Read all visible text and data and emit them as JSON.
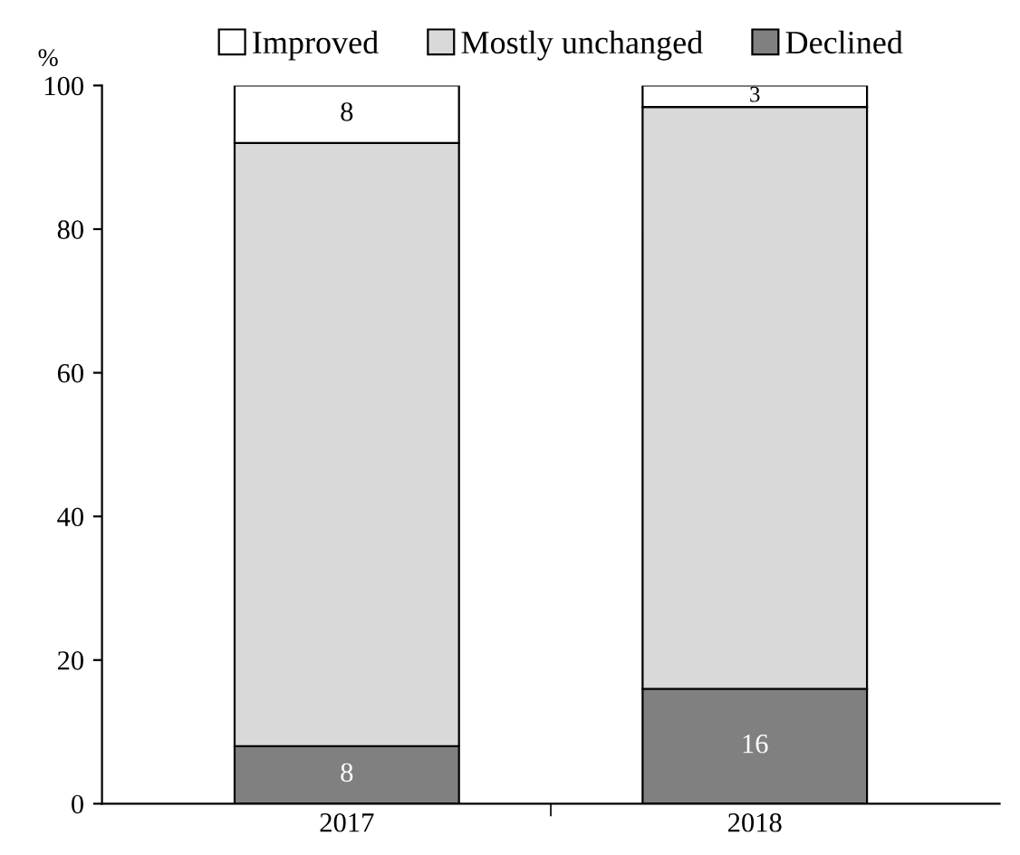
{
  "chart_data": {
    "type": "bar",
    "stacked": true,
    "ylabel": "%",
    "categories": [
      "2017",
      "2018"
    ],
    "series": [
      {
        "name": "Declined",
        "color": "#808080",
        "values": [
          8,
          16
        ],
        "value_labels": [
          "8",
          "16"
        ]
      },
      {
        "name": "Mostly unchanged",
        "color": "#d9d9d9",
        "values": [
          84,
          81
        ],
        "value_labels": [
          null,
          null
        ]
      },
      {
        "name": "Improved",
        "color": "#ffffff",
        "values": [
          8,
          3
        ],
        "value_labels": [
          "8",
          "3"
        ]
      }
    ],
    "ylim": [
      0,
      100
    ],
    "yticks": [
      0,
      20,
      40,
      60,
      80,
      100
    ],
    "grid": false,
    "legend": "top"
  }
}
